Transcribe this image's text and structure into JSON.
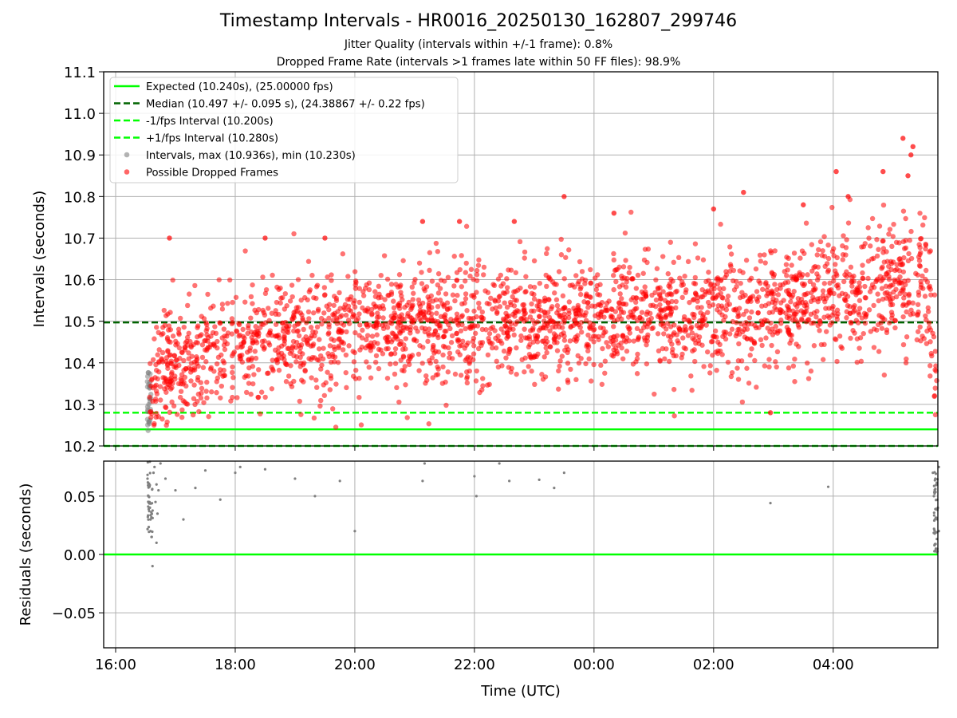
{
  "figure": {
    "title": "Timestamp Intervals - HR0016_20250130_162807_299746",
    "subtitle_1": "Jitter Quality (intervals within +/-1 frame): 0.8%",
    "subtitle_2": "Dropped Frame Rate (intervals >1 frames late within 50 FF files): 98.9%"
  },
  "chart_data": [
    {
      "type": "scatter",
      "ylabel": "Intervals (seconds)",
      "xlim_hours": [
        15.8,
        29.75
      ],
      "ylim": [
        10.2,
        11.1
      ],
      "yticks": [
        "10.2",
        "10.3",
        "10.4",
        "10.5",
        "10.6",
        "10.7",
        "10.8",
        "10.9",
        "11.0",
        "11.1"
      ],
      "grid": true,
      "legend_position": "top-left",
      "reference_lines": [
        {
          "name": "Expected (10.240s), (25.00000 fps)",
          "y": 10.24,
          "color": "#00ff00",
          "style": "solid"
        },
        {
          "name": "Median (10.497 +/- 0.095 s), (24.38867 +/- 0.22 fps)",
          "y": 10.497,
          "color": "#006400",
          "style": "dashed"
        },
        {
          "name": "-1/fps Interval (10.200s)",
          "y": 10.2,
          "color": "#00ff00",
          "style": "dashed"
        },
        {
          "name": "+1/fps Interval (10.280s)",
          "y": 10.28,
          "color": "#00ff00",
          "style": "dashed"
        }
      ],
      "series": [
        {
          "name": "Intervals, max (10.936s), min (10.230s)",
          "color": "#808080",
          "marker": "circle"
        },
        {
          "name": "Possible Dropped Frames",
          "color": "#ff0000",
          "marker": "circle"
        }
      ],
      "trend_points": [
        {
          "time": "16:32",
          "y": 10.32,
          "spread": 0.06
        },
        {
          "time": "16:45",
          "y": 10.38,
          "spread": 0.07
        },
        {
          "time": "17:30",
          "y": 10.42,
          "spread": 0.07
        },
        {
          "time": "19:00",
          "y": 10.46,
          "spread": 0.07
        },
        {
          "time": "21:00",
          "y": 10.49,
          "spread": 0.07
        },
        {
          "time": "23:00",
          "y": 10.5,
          "spread": 0.07
        },
        {
          "time": "01:00",
          "y": 10.52,
          "spread": 0.07
        },
        {
          "time": "03:00",
          "y": 10.53,
          "spread": 0.07
        },
        {
          "time": "04:30",
          "y": 10.57,
          "spread": 0.08
        },
        {
          "time": "05:30",
          "y": 10.6,
          "spread": 0.09
        },
        {
          "time": "05:40",
          "y": 10.45,
          "spread": 0.08
        },
        {
          "time": "05:45",
          "y": 10.3,
          "spread": 0.05
        }
      ],
      "highlight_points": [
        {
          "time": "16:54",
          "y": 10.7
        },
        {
          "time": "18:30",
          "y": 10.7
        },
        {
          "time": "19:30",
          "y": 10.7
        },
        {
          "time": "21:08",
          "y": 10.74
        },
        {
          "time": "21:45",
          "y": 10.74
        },
        {
          "time": "22:40",
          "y": 10.74
        },
        {
          "time": "23:30",
          "y": 10.8
        },
        {
          "time": "00:20",
          "y": 10.76
        },
        {
          "time": "02:00",
          "y": 10.77
        },
        {
          "time": "02:30",
          "y": 10.81
        },
        {
          "time": "03:30",
          "y": 10.78
        },
        {
          "time": "04:03",
          "y": 10.86
        },
        {
          "time": "04:15",
          "y": 10.8
        },
        {
          "time": "04:50",
          "y": 10.86
        },
        {
          "time": "05:10",
          "y": 10.94
        },
        {
          "time": "05:20",
          "y": 10.92
        },
        {
          "time": "05:18",
          "y": 10.9
        },
        {
          "time": "05:15",
          "y": 10.85
        },
        {
          "time": "02:57",
          "y": 10.28
        }
      ]
    },
    {
      "type": "scatter",
      "xlabel": "Time (UTC)",
      "ylabel": "Residuals (seconds)",
      "xlim_hours": [
        15.8,
        29.75
      ],
      "ylim": [
        -0.08,
        0.08
      ],
      "yticks": [
        "0.05",
        "0.00",
        "−0.05"
      ],
      "xticks": [
        "16:00",
        "18:00",
        "20:00",
        "22:00",
        "00:00",
        "02:00",
        "04:00"
      ],
      "grid": true,
      "zero_line_color": "#00ff00",
      "series": [
        {
          "name": "",
          "color": "#808080",
          "points": [
            {
              "time": "16:32",
              "y": 0.065
            },
            {
              "time": "16:33",
              "y": 0.05
            },
            {
              "time": "16:34",
              "y": 0.04
            },
            {
              "time": "16:35",
              "y": 0.03
            },
            {
              "time": "16:35",
              "y": 0.02
            },
            {
              "time": "16:36",
              "y": 0.015
            },
            {
              "time": "16:37",
              "y": -0.01
            },
            {
              "time": "16:38",
              "y": 0.07
            },
            {
              "time": "16:39",
              "y": 0.075
            },
            {
              "time": "16:40",
              "y": 0.045
            },
            {
              "time": "16:41",
              "y": 0.06
            },
            {
              "time": "16:41",
              "y": 0.01
            },
            {
              "time": "16:42",
              "y": 0.035
            },
            {
              "time": "16:43",
              "y": 0.055
            },
            {
              "time": "16:45",
              "y": 0.078
            },
            {
              "time": "16:50",
              "y": 0.065
            },
            {
              "time": "17:00",
              "y": 0.055
            },
            {
              "time": "17:08",
              "y": 0.03
            },
            {
              "time": "17:20",
              "y": 0.057
            },
            {
              "time": "17:30",
              "y": 0.072
            },
            {
              "time": "17:45",
              "y": 0.047
            },
            {
              "time": "18:00",
              "y": 0.07
            },
            {
              "time": "18:05",
              "y": 0.075
            },
            {
              "time": "18:30",
              "y": 0.073
            },
            {
              "time": "19:00",
              "y": 0.065
            },
            {
              "time": "19:20",
              "y": 0.05
            },
            {
              "time": "19:45",
              "y": 0.063
            },
            {
              "time": "20:00",
              "y": 0.02
            },
            {
              "time": "21:08",
              "y": 0.063
            },
            {
              "time": "21:10",
              "y": 0.078
            },
            {
              "time": "22:00",
              "y": 0.067
            },
            {
              "time": "22:02",
              "y": 0.05
            },
            {
              "time": "22:25",
              "y": 0.078
            },
            {
              "time": "22:35",
              "y": 0.063
            },
            {
              "time": "23:05",
              "y": 0.064
            },
            {
              "time": "23:20",
              "y": 0.057
            },
            {
              "time": "23:30",
              "y": 0.07
            },
            {
              "time": "02:57",
              "y": 0.044
            },
            {
              "time": "03:55",
              "y": 0.058
            },
            {
              "time": "05:40",
              "y": 0.07
            },
            {
              "time": "05:41",
              "y": 0.05
            },
            {
              "time": "05:42",
              "y": 0.03
            },
            {
              "time": "05:43",
              "y": 0.005
            },
            {
              "time": "05:44",
              "y": 0.06
            },
            {
              "time": "05:45",
              "y": 0.04
            },
            {
              "time": "05:46",
              "y": 0.02
            },
            {
              "time": "05:46",
              "y": 0.075
            }
          ]
        }
      ]
    }
  ]
}
